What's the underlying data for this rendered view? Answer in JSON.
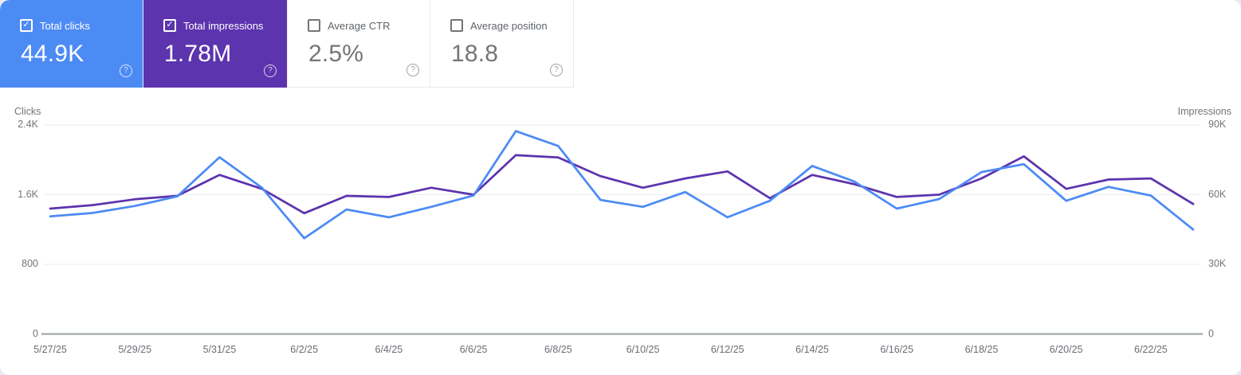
{
  "cards": [
    {
      "label": "Total clicks",
      "value": "44.9K",
      "checked": true,
      "selected": true,
      "bg": "#4D8BF4",
      "help_icon": "question-mark"
    },
    {
      "label": "Total impressions",
      "value": "1.78M",
      "checked": true,
      "selected": true,
      "bg": "#5C34AE",
      "help_icon": "question-mark"
    },
    {
      "label": "Average CTR",
      "value": "2.5%",
      "checked": false,
      "selected": false,
      "bg": "#FFFFFF",
      "help_icon": "question-mark"
    },
    {
      "label": "Average position",
      "value": "18.8",
      "checked": false,
      "selected": false,
      "bg": "#FFFFFF",
      "help_icon": "question-mark"
    }
  ],
  "chart_data": {
    "type": "line",
    "x": [
      "5/27/25",
      "5/28/25",
      "5/29/25",
      "5/30/25",
      "5/31/25",
      "6/1/25",
      "6/2/25",
      "6/3/25",
      "6/4/25",
      "6/5/25",
      "6/6/25",
      "6/7/25",
      "6/8/25",
      "6/9/25",
      "6/10/25",
      "6/11/25",
      "6/12/25",
      "6/13/25",
      "6/14/25",
      "6/15/25",
      "6/16/25",
      "6/17/25",
      "6/18/25",
      "6/19/25",
      "6/20/25",
      "6/21/25",
      "6/22/25",
      "6/23/25"
    ],
    "x_tick_every": 2,
    "series": [
      {
        "name": "Total clicks",
        "axis": "left",
        "color": "#4D8BF4",
        "values": [
          1350,
          1390,
          1470,
          1580,
          2030,
          1680,
          1100,
          1430,
          1340,
          1460,
          1590,
          2330,
          2160,
          1540,
          1460,
          1630,
          1340,
          1530,
          1930,
          1750,
          1440,
          1550,
          1860,
          1950,
          1530,
          1690,
          1590,
          1200
        ]
      },
      {
        "name": "Total impressions",
        "axis": "right",
        "color": "#5C34AE",
        "values": [
          54000,
          55500,
          58000,
          59500,
          68500,
          62500,
          52000,
          59500,
          59000,
          63000,
          60000,
          77000,
          76000,
          68000,
          63000,
          67000,
          70000,
          58500,
          68500,
          64500,
          59000,
          60000,
          67000,
          76500,
          62500,
          66500,
          67000,
          56000
        ]
      }
    ],
    "left_axis": {
      "label": "Clicks",
      "tick_labels": [
        "0",
        "800",
        "1.6K",
        "2.4K"
      ],
      "tick_values": [
        0,
        800,
        1600,
        2400
      ],
      "max": 2400
    },
    "right_axis": {
      "label": "Impressions",
      "tick_labels": [
        "0",
        "30K",
        "60K",
        "90K"
      ],
      "tick_values": [
        0,
        30000,
        60000,
        90000
      ],
      "max": 90000
    },
    "grid": "horizontal",
    "baseline_color": "#9aa0a6",
    "gridline_color": "#ebedef",
    "legend_position": "none"
  }
}
